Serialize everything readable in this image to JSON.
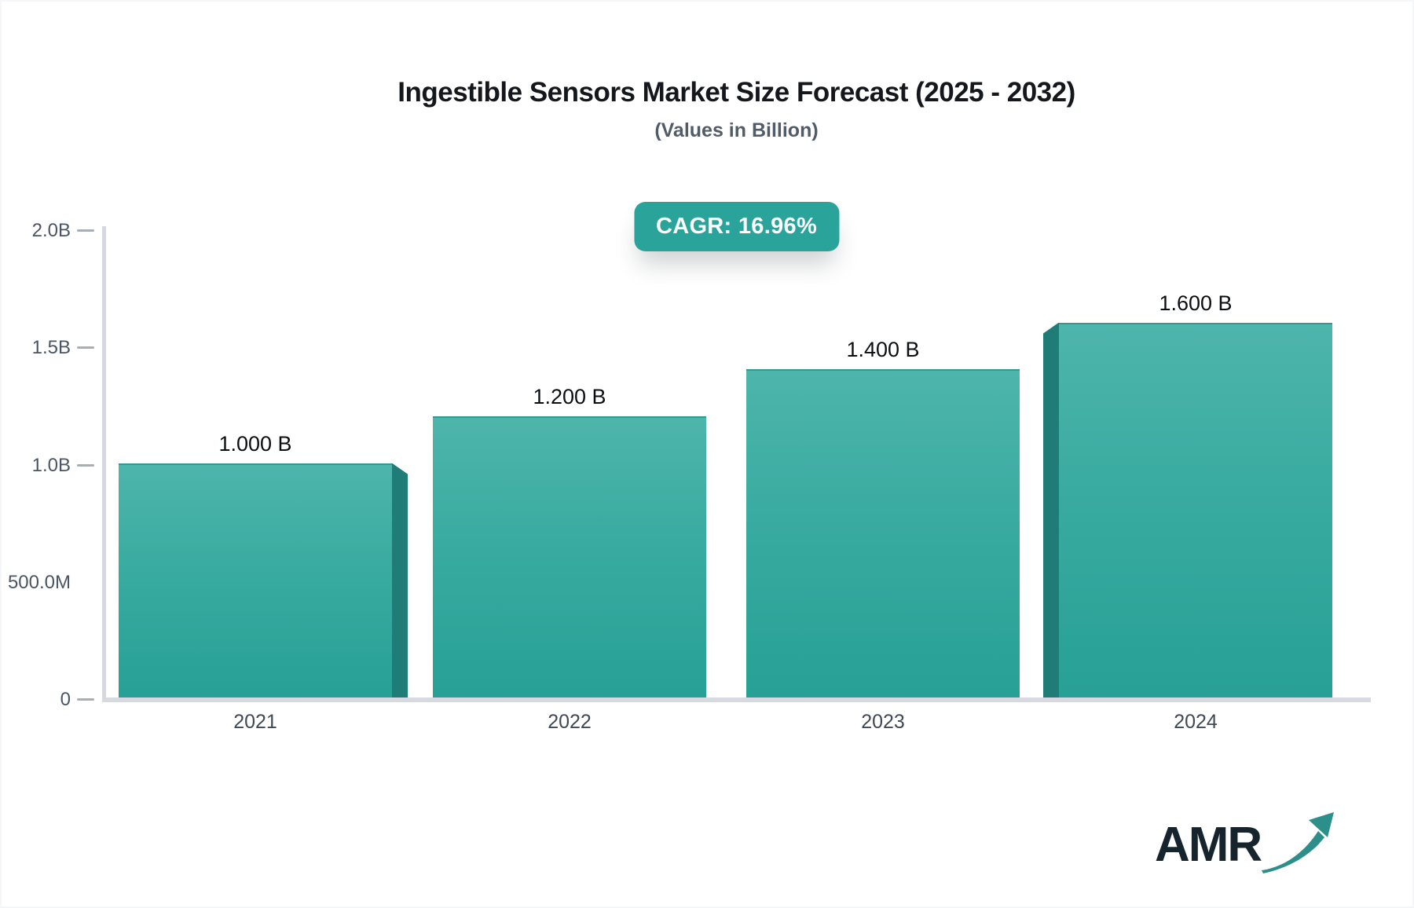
{
  "chart_data": {
    "type": "bar",
    "title": "Ingestible Sensors Market Size Forecast (2025 - 2032)",
    "subtitle": "(Values in Billion)",
    "annotation_badge": "CAGR: 16.96%",
    "categories": [
      "2021",
      "2022",
      "2023",
      "2024"
    ],
    "values": [
      1.0,
      1.2,
      1.4,
      1.6
    ],
    "value_labels": [
      "1.000 B",
      "1.200 B",
      "1.400 B",
      "1.600 B"
    ],
    "ylim": [
      0,
      2.0
    ],
    "yticks": [
      {
        "label": "2.0B",
        "value": 2.0,
        "has_tick": true
      },
      {
        "label": "1.5B",
        "value": 1.5,
        "has_tick": true
      },
      {
        "label": "1.0B",
        "value": 1.0,
        "has_tick": true
      },
      {
        "label": "500.0M",
        "value": 0.5,
        "has_tick": false
      },
      {
        "label": "0",
        "value": 0.0,
        "has_tick": true
      }
    ],
    "grid": false,
    "legend": false,
    "colors": {
      "bar_top": "#4eb5ab",
      "bar_bottom": "#27a096",
      "bar_side_face": "#1f7c76",
      "badge_background": "#2aa49b",
      "axis_line": "#d6d9df",
      "tick_color": "#a7aeb8"
    }
  },
  "branding": {
    "logo_text": "AMR"
  }
}
